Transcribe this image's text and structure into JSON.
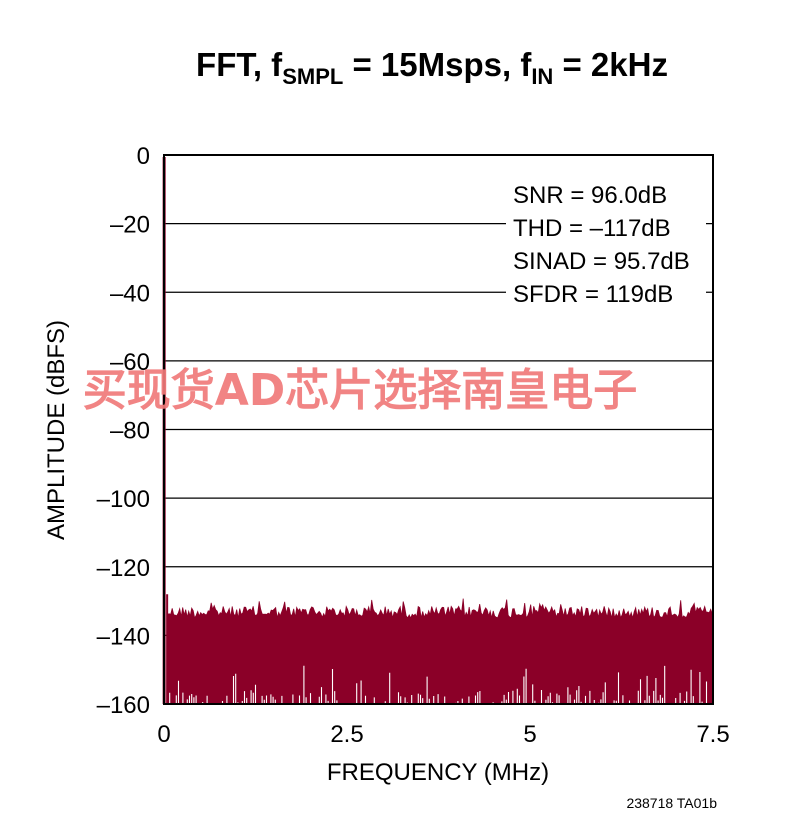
{
  "chart_data": {
    "type": "line",
    "title": {
      "main": "FFT, f",
      "sub1": "SMPL",
      "mid": " = 15Msps, f",
      "sub2": "IN",
      "end": " = 2kHz"
    },
    "xlabel": "FREQUENCY (MHz)",
    "ylabel": "AMPLITUDE (dBFS)",
    "xlim": [
      0,
      7.5
    ],
    "ylim": [
      -160,
      0
    ],
    "x_ticks": [
      {
        "value": 0,
        "label": "0"
      },
      {
        "value": 2.5,
        "label": "2.5"
      },
      {
        "value": 5,
        "label": "5"
      },
      {
        "value": 7.5,
        "label": "7.5"
      }
    ],
    "y_ticks": [
      {
        "value": 0,
        "label": "0"
      },
      {
        "value": -20,
        "label": "–20"
      },
      {
        "value": -40,
        "label": "–40"
      },
      {
        "value": -60,
        "label": "–60"
      },
      {
        "value": -80,
        "label": "–80"
      },
      {
        "value": -100,
        "label": "–100"
      },
      {
        "value": -120,
        "label": "–120"
      },
      {
        "value": -140,
        "label": "–140"
      },
      {
        "value": -160,
        "label": "–160"
      }
    ],
    "grid": "horizontal",
    "annotations": [
      "SNR = 96.0dB",
      "THD = –117dB",
      "SINAD = 95.7dB",
      "SFDR = 119dB"
    ],
    "annotation_placement": "top-right",
    "series": [
      {
        "color": "#8b0028",
        "fundamental": {
          "x": 0.002,
          "y": 0
        },
        "noise_floor": {
          "x_range": [
            0.05,
            7.5
          ],
          "y_typical_top": -131,
          "y_typical_bottom": -160
        }
      }
    ]
  },
  "figure_code": "238718 TA01b",
  "watermark": "买现货AD芯片选择南皇电子",
  "colors": {
    "trace": "#8b0028",
    "grid": "#000000",
    "watermark": "#f07a7a"
  }
}
